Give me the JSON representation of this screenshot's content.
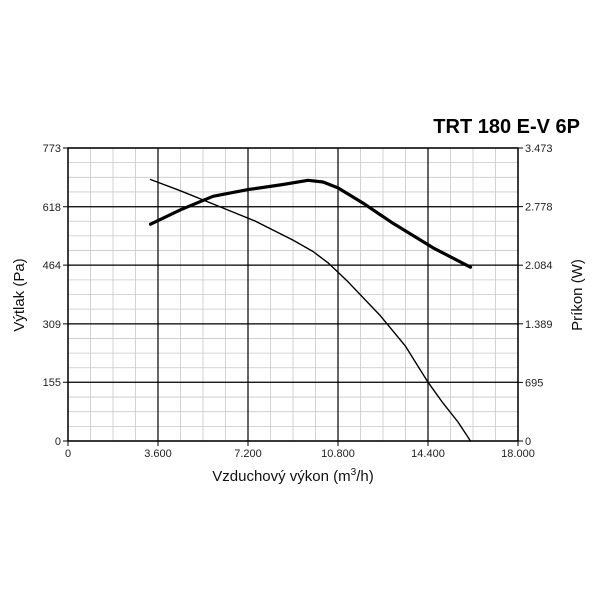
{
  "chart_data": {
    "type": "line",
    "title": "TRT 180 E-V 6P",
    "xlabel": "Vzduchový výkon (m",
    "xlabel_sup": "3",
    "xlabel_end": "/h)",
    "ylabel_left": "Výtlak (Pa)",
    "ylabel_right": "Príkon (W)",
    "xlim": [
      0,
      18000
    ],
    "ylim_left": [
      0,
      773
    ],
    "ylim_right": [
      0,
      3473
    ],
    "x_ticks": [
      0,
      3600,
      7200,
      10800,
      14400,
      18000
    ],
    "x_tick_labels": [
      "0",
      "3.600",
      "7.200",
      "10.800",
      "14.400",
      "18.000"
    ],
    "y_left_ticks": [
      0,
      155,
      309,
      464,
      618,
      773
    ],
    "y_left_tick_labels": [
      "0",
      "155",
      "309",
      "464",
      "618",
      "773"
    ],
    "y_right_ticks": [
      0,
      695,
      1389,
      2084,
      2778,
      3473
    ],
    "y_right_tick_labels": [
      "0",
      "695",
      "1.389",
      "2.084",
      "2.778",
      "3.473"
    ],
    "grid": true,
    "series": [
      {
        "role": "power",
        "axis": "right",
        "color": "#000000",
        "x": [
          3300,
          4500,
          5800,
          7200,
          8600,
          9600,
          10200,
          10800,
          11800,
          13000,
          14600,
          16100
        ],
        "y": [
          2570,
          2740,
          2900,
          2980,
          3040,
          3090,
          3070,
          3000,
          2820,
          2580,
          2290,
          2060
        ]
      },
      {
        "role": "pressure",
        "axis": "left",
        "color": "#000000",
        "x": [
          3300,
          4500,
          6000,
          7500,
          9000,
          9800,
          10400,
          11200,
          12500,
          13500,
          14400,
          15000,
          15600,
          16100
        ],
        "y": [
          690,
          660,
          620,
          580,
          530,
          500,
          470,
          420,
          330,
          250,
          155,
          100,
          50,
          0
        ]
      }
    ]
  }
}
